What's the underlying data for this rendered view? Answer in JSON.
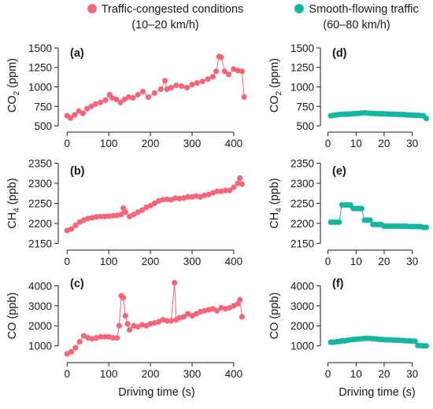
{
  "legend": {
    "traffic": {
      "line1": "Traffic-congested conditions",
      "line2": "(10–20 km/h)",
      "color": "#f4677a"
    },
    "smooth": {
      "line1": "Smooth-flowing traffic",
      "line2": "(60–80 km/h)",
      "color": "#17b59e"
    }
  },
  "x_label": "Driving time (s)",
  "chart_data": [
    {
      "id": "a",
      "panel_label": "(a)",
      "type": "scatter",
      "series_color": "#f4677a",
      "y_label": "CO2 (ppm)",
      "y_label_main": "CO",
      "y_label_sub": "2",
      "y_label_unit": " (ppm)",
      "xlim": [
        -10,
        440
      ],
      "ylim": [
        480,
        1560
      ],
      "x_ticks": [
        0,
        100,
        200,
        300,
        400
      ],
      "y_ticks": [
        500,
        750,
        1000,
        1250,
        1500
      ],
      "x": [
        0,
        8,
        18,
        28,
        38,
        48,
        58,
        68,
        80,
        92,
        102,
        108,
        118,
        128,
        138,
        148,
        158,
        170,
        182,
        195,
        210,
        225,
        235,
        240,
        250,
        262,
        275,
        288,
        300,
        312,
        325,
        338,
        350,
        358,
        365,
        370,
        378,
        388,
        400,
        410,
        420,
        425
      ],
      "y": [
        630,
        600,
        640,
        690,
        660,
        720,
        750,
        780,
        800,
        830,
        900,
        860,
        840,
        800,
        840,
        870,
        860,
        900,
        940,
        870,
        920,
        970,
        1080,
        970,
        990,
        1020,
        1010,
        990,
        1030,
        1050,
        1070,
        1100,
        1130,
        1200,
        1390,
        1380,
        1200,
        1160,
        1230,
        1210,
        1200,
        870
      ]
    },
    {
      "id": "b",
      "panel_label": "(b)",
      "type": "scatter",
      "series_color": "#f4677a",
      "y_label": "CH4 (ppb)",
      "y_label_main": "CH",
      "y_label_sub": "4",
      "y_label_unit": " (ppb)",
      "xlim": [
        -10,
        440
      ],
      "ylim": [
        2145,
        2355
      ],
      "x_ticks": [
        0,
        100,
        200,
        300,
        400
      ],
      "y_ticks": [
        2150,
        2200,
        2250,
        2300,
        2350
      ],
      "x": [
        0,
        10,
        20,
        30,
        40,
        50,
        60,
        70,
        80,
        90,
        100,
        110,
        120,
        130,
        135,
        140,
        150,
        160,
        170,
        180,
        190,
        200,
        210,
        220,
        230,
        240,
        250,
        260,
        270,
        280,
        290,
        300,
        310,
        320,
        330,
        340,
        350,
        360,
        370,
        380,
        390,
        400,
        410,
        415,
        420
      ],
      "y": [
        2182,
        2186,
        2195,
        2203,
        2208,
        2212,
        2214,
        2216,
        2217,
        2217,
        2218,
        2219,
        2220,
        2222,
        2238,
        2228,
        2217,
        2222,
        2228,
        2233,
        2240,
        2244,
        2250,
        2256,
        2259,
        2260,
        2259,
        2263,
        2262,
        2263,
        2266,
        2266,
        2268,
        2266,
        2270,
        2272,
        2276,
        2280,
        2280,
        2282,
        2282,
        2290,
        2300,
        2313,
        2298
      ]
    },
    {
      "id": "c",
      "panel_label": "(c)",
      "type": "scatter",
      "series_color": "#f4677a",
      "y_label": "CO (ppb)",
      "y_label_main": "CO",
      "y_label_sub": "",
      "y_label_unit": " (ppb)",
      "xlim": [
        -10,
        440
      ],
      "ylim": [
        400,
        4600
      ],
      "x_ticks": [
        0,
        100,
        200,
        300,
        400
      ],
      "y_ticks": [
        1000,
        2000,
        3000,
        4000
      ],
      "x": [
        0,
        10,
        20,
        30,
        40,
        50,
        60,
        70,
        80,
        90,
        100,
        110,
        120,
        125,
        130,
        135,
        140,
        145,
        150,
        160,
        170,
        180,
        190,
        200,
        210,
        220,
        230,
        240,
        250,
        258,
        262,
        270,
        280,
        290,
        300,
        310,
        320,
        330,
        340,
        350,
        360,
        370,
        380,
        390,
        400,
        410,
        415,
        420
      ],
      "y": [
        600,
        700,
        900,
        1200,
        1500,
        1400,
        1350,
        1400,
        1450,
        1450,
        1450,
        1400,
        1400,
        2000,
        3500,
        3400,
        2500,
        2100,
        1800,
        2000,
        1950,
        2050,
        2000,
        2100,
        2150,
        2200,
        2300,
        2250,
        2250,
        4150,
        2300,
        2400,
        2450,
        2600,
        2500,
        2600,
        2700,
        2750,
        2800,
        2850,
        2750,
        2900,
        2850,
        2900,
        3000,
        3100,
        3300,
        2450
      ]
    },
    {
      "id": "d",
      "panel_label": "(d)",
      "type": "scatter",
      "series_color": "#17b59e",
      "y_label": "CO2 (ppm)",
      "y_label_main": "CO",
      "y_label_sub": "2",
      "y_label_unit": " (ppm)",
      "xlim": [
        -1,
        36
      ],
      "ylim": [
        480,
        1560
      ],
      "x_ticks": [
        0,
        10,
        20,
        30
      ],
      "y_ticks": [
        500,
        750,
        1000,
        1250,
        1500
      ],
      "x": [
        1,
        2,
        3,
        4,
        5,
        6,
        7,
        8,
        9,
        10,
        11,
        12,
        13,
        14,
        15,
        16,
        17,
        18,
        19,
        20,
        21,
        22,
        23,
        24,
        25,
        26,
        27,
        28,
        29,
        30,
        31,
        32,
        33,
        34,
        35
      ],
      "y": [
        630,
        635,
        640,
        645,
        648,
        650,
        650,
        652,
        655,
        658,
        660,
        665,
        668,
        665,
        660,
        660,
        658,
        655,
        655,
        655,
        652,
        650,
        650,
        648,
        648,
        645,
        645,
        640,
        640,
        638,
        635,
        635,
        632,
        630,
        595
      ]
    },
    {
      "id": "e",
      "panel_label": "(e)",
      "type": "scatter",
      "series_color": "#17b59e",
      "y_label": "CH4 (ppb)",
      "y_label_main": "CH",
      "y_label_sub": "4",
      "y_label_unit": " (ppb)",
      "xlim": [
        -1,
        36
      ],
      "ylim": [
        2145,
        2355
      ],
      "x_ticks": [
        0,
        10,
        20,
        30
      ],
      "y_ticks": [
        2150,
        2200,
        2250,
        2300,
        2350
      ],
      "x": [
        1,
        2,
        3,
        4,
        5,
        6,
        7,
        8,
        9,
        10,
        11,
        12,
        13,
        14,
        15,
        16,
        17,
        18,
        19,
        20,
        21,
        22,
        23,
        24,
        25,
        26,
        27,
        28,
        29,
        30,
        31,
        32,
        33,
        34,
        35
      ],
      "y": [
        2203,
        2203,
        2203,
        2203,
        2246,
        2246,
        2246,
        2246,
        2237,
        2237,
        2237,
        2237,
        2208,
        2208,
        2208,
        2197,
        2197,
        2197,
        2197,
        2193,
        2193,
        2193,
        2193,
        2193,
        2193,
        2193,
        2193,
        2193,
        2192,
        2192,
        2192,
        2192,
        2192,
        2190,
        2190
      ]
    },
    {
      "id": "f",
      "panel_label": "(f)",
      "type": "scatter",
      "series_color": "#17b59e",
      "y_label": "CO (ppb)",
      "y_label_main": "CO",
      "y_label_sub": "",
      "y_label_unit": " (ppb)",
      "xlim": [
        -1,
        36
      ],
      "ylim": [
        400,
        4600
      ],
      "x_ticks": [
        0,
        10,
        20,
        30
      ],
      "y_ticks": [
        1000,
        2000,
        3000,
        4000
      ],
      "x": [
        1,
        2,
        3,
        4,
        5,
        6,
        7,
        8,
        9,
        10,
        11,
        12,
        13,
        14,
        15,
        16,
        17,
        18,
        19,
        20,
        21,
        22,
        23,
        24,
        25,
        26,
        27,
        28,
        29,
        30,
        31,
        32,
        33,
        34,
        35
      ],
      "y": [
        1180,
        1180,
        1200,
        1220,
        1250,
        1250,
        1280,
        1300,
        1320,
        1330,
        1340,
        1350,
        1370,
        1380,
        1370,
        1360,
        1350,
        1330,
        1320,
        1310,
        1300,
        1300,
        1290,
        1280,
        1280,
        1270,
        1260,
        1250,
        1250,
        1240,
        1230,
        1020,
        1010,
        1000,
        1000
      ]
    }
  ]
}
